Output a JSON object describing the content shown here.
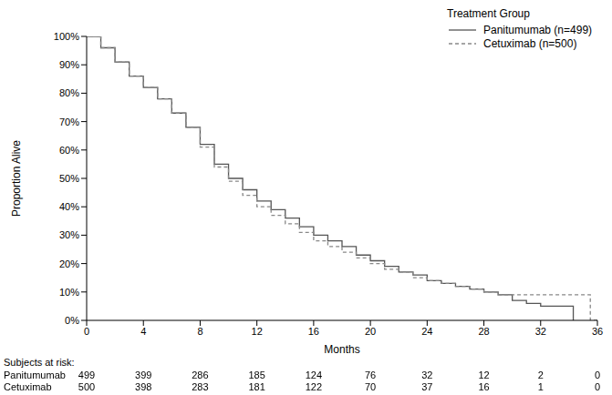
{
  "chart_data": {
    "type": "line",
    "x_label": "Months",
    "y_label": "Proportion Alive",
    "legend_title": "Treatment Group",
    "legend": "upper right",
    "grid": false,
    "xlim": [
      0,
      36
    ],
    "xticks": [
      0,
      4,
      8,
      12,
      16,
      20,
      24,
      28,
      32,
      36
    ],
    "ylim": [
      0,
      100
    ],
    "yticks": [
      {
        "value": 0,
        "label": "0%"
      },
      {
        "value": 10,
        "label": "10%"
      },
      {
        "value": 20,
        "label": "20%"
      },
      {
        "value": 30,
        "label": "30%"
      },
      {
        "value": 40,
        "label": "40%"
      },
      {
        "value": 50,
        "label": "50%"
      },
      {
        "value": 60,
        "label": "60%"
      },
      {
        "value": 70,
        "label": "70%"
      },
      {
        "value": 80,
        "label": "80%"
      },
      {
        "value": 90,
        "label": "90%"
      },
      {
        "value": 100,
        "label": "100%"
      }
    ],
    "series": [
      {
        "name": "Panitumumab (n=499)",
        "color": "#555555",
        "line_style": "solid",
        "x": [
          0,
          1,
          2,
          3,
          4,
          5,
          6,
          7,
          8,
          9,
          10,
          11,
          12,
          13,
          14,
          15,
          16,
          17,
          18,
          19,
          20,
          21,
          22,
          23,
          24,
          25,
          26,
          27,
          28,
          29,
          30,
          31,
          32,
          33,
          34,
          34.3
        ],
        "values": [
          100,
          96,
          91,
          86,
          82,
          78,
          73,
          68,
          62,
          55,
          50,
          46,
          42,
          39,
          36,
          33,
          30,
          28,
          26,
          23,
          21,
          19,
          17,
          16,
          14,
          13,
          12,
          11,
          10,
          9,
          7,
          6,
          5,
          5,
          5,
          0
        ]
      },
      {
        "name": "Cetuximab (n=500)",
        "color": "#888888",
        "line_style": "dashed",
        "x": [
          0,
          1,
          2,
          3,
          4,
          5,
          6,
          7,
          8,
          9,
          10,
          11,
          12,
          13,
          14,
          15,
          16,
          17,
          18,
          19,
          20,
          21,
          22,
          23,
          24,
          25,
          26,
          27,
          28,
          29,
          30,
          31,
          32,
          33,
          34,
          35,
          35.5,
          36
        ],
        "values": [
          100,
          96,
          91,
          86,
          82,
          78,
          73,
          68,
          61,
          54,
          49,
          44,
          40,
          37,
          34,
          31,
          28,
          26,
          24,
          22,
          20,
          18,
          17,
          15,
          14,
          13,
          12,
          11,
          10,
          9,
          9,
          9,
          9,
          9,
          9,
          9,
          0,
          0
        ]
      }
    ],
    "at_risk": {
      "title": "Subjects at risk:",
      "times": [
        0,
        4,
        8,
        12,
        16,
        20,
        24,
        28,
        32,
        36
      ],
      "rows": [
        {
          "name": "Panitumumab",
          "values": [
            499,
            399,
            286,
            185,
            124,
            76,
            32,
            12,
            2,
            0
          ]
        },
        {
          "name": "Cetuximab",
          "values": [
            500,
            398,
            283,
            181,
            122,
            70,
            37,
            16,
            1,
            0
          ]
        }
      ]
    }
  }
}
